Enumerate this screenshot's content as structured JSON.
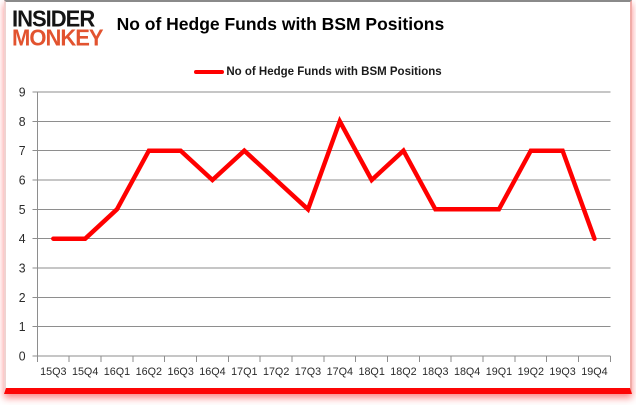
{
  "logo": {
    "line1": "INSIDER",
    "line2": "MONKEY"
  },
  "title": "No of Hedge Funds with BSM Positions",
  "legend": {
    "label": "No of Hedge Funds with BSM Positions",
    "color": "#ff0000"
  },
  "chart_data": {
    "type": "line",
    "title": "No of Hedge Funds with BSM Positions",
    "categories": [
      "15Q3",
      "15Q4",
      "16Q1",
      "16Q2",
      "16Q3",
      "16Q4",
      "17Q1",
      "17Q2",
      "17Q3",
      "17Q4",
      "18Q1",
      "18Q2",
      "18Q3",
      "18Q4",
      "19Q1",
      "19Q2",
      "19Q3",
      "19Q4"
    ],
    "series": [
      {
        "name": "No of Hedge Funds with BSM Positions",
        "color": "#ff0000",
        "values": [
          4,
          4,
          5,
          7,
          7,
          6,
          7,
          6,
          5,
          8,
          6,
          7,
          5,
          5,
          5,
          7,
          7,
          4
        ]
      }
    ],
    "xlabel": "",
    "ylabel": "",
    "ylim": [
      0,
      9
    ],
    "ytick_step": 1,
    "grid": true,
    "legend_position": "top"
  },
  "colors": {
    "line": "#ff0000",
    "grid": "#8e8e8e",
    "axis": "#8e8e8e",
    "tick_label": "#2b2b2b",
    "logo_black": "#141414",
    "logo_red": "#e2532f",
    "frame_bottom": "#fd0505"
  }
}
